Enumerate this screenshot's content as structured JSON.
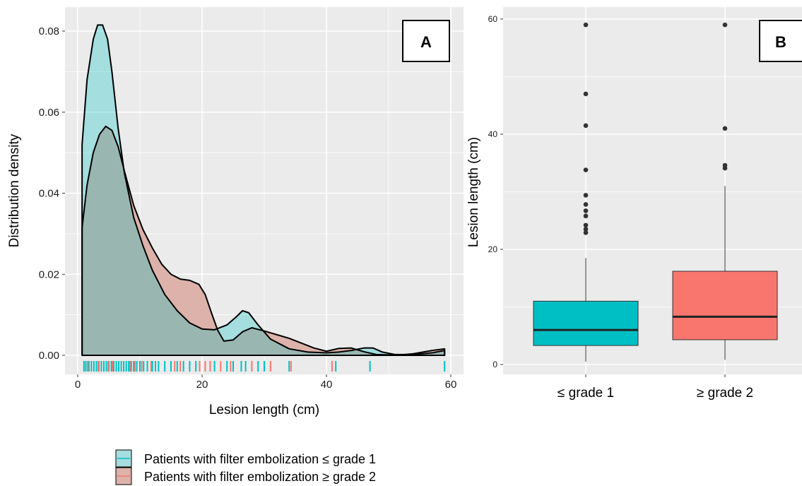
{
  "colors": {
    "panel_bg": "#ebebeb",
    "grid": "#ffffff",
    "group1": "#00bfc4",
    "group2": "#f8766d",
    "group1_fill": "#a6dde0",
    "group2_fill": "#dcb2aa",
    "overlap_fill": "#b7bcb6"
  },
  "chart_data": [
    {
      "type": "area",
      "panel_label": "A",
      "xlabel": "Lesion length (cm)",
      "ylabel": "Distribution density",
      "xlim": [
        0,
        60
      ],
      "ylim": [
        0,
        0.085
      ],
      "x_ticks": [
        0,
        20,
        40,
        60
      ],
      "y_ticks": [
        0.0,
        0.02,
        0.04,
        0.06,
        0.08
      ],
      "y_tick_labels": [
        "0.00",
        "0.02",
        "0.04",
        "0.06",
        "0.08"
      ],
      "grid": true,
      "series": [
        {
          "name": "Patients with filter embolization ≤ grade 1",
          "color": "#00bfc4",
          "x": [
            0.7,
            1.5,
            2.5,
            3.2,
            4.0,
            4.8,
            5.5,
            6.5,
            7.5,
            9,
            10.5,
            12,
            14,
            16,
            18,
            20,
            22,
            24,
            25.5,
            26.5,
            27.5,
            29,
            31,
            34,
            37,
            40,
            42,
            44,
            46,
            47.5,
            49,
            51,
            54,
            57,
            59
          ],
          "values": [
            0.052,
            0.068,
            0.078,
            0.0815,
            0.0815,
            0.078,
            0.07,
            0.056,
            0.045,
            0.034,
            0.027,
            0.021,
            0.015,
            0.011,
            0.008,
            0.0065,
            0.0063,
            0.0075,
            0.0095,
            0.011,
            0.0105,
            0.0075,
            0.004,
            0.0016,
            0.0008,
            0.0006,
            0.0008,
            0.0012,
            0.0018,
            0.0018,
            0.0008,
            0.0002,
            0.0002,
            0.0006,
            0.0012
          ]
        },
        {
          "name": "Patients with filter embolization ≥ grade 2",
          "color": "#f8766d",
          "x": [
            0.7,
            1.5,
            2.5,
            3.5,
            4.5,
            5.5,
            6.5,
            7.5,
            9,
            10.5,
            12,
            13.5,
            15,
            16.5,
            18,
            19.5,
            20.5,
            21.5,
            22.5,
            23.5,
            25,
            26.5,
            28,
            30,
            32,
            34,
            36,
            38,
            40,
            42,
            44,
            46,
            48,
            50,
            52,
            54,
            57,
            59
          ],
          "values": [
            0.0315,
            0.042,
            0.05,
            0.0545,
            0.0565,
            0.0555,
            0.0515,
            0.0455,
            0.037,
            0.031,
            0.0265,
            0.0225,
            0.02,
            0.0188,
            0.0185,
            0.0175,
            0.015,
            0.0105,
            0.0062,
            0.0035,
            0.0038,
            0.0058,
            0.0068,
            0.006,
            0.0051,
            0.0042,
            0.003,
            0.0018,
            0.001,
            0.0017,
            0.0018,
            0.0009,
            0.0002,
            0.0001,
            0.0001,
            0.0004,
            0.0012,
            0.0016
          ]
        }
      ],
      "rug": {
        "group1_x": [
          1,
          1.3,
          1.8,
          2.2,
          2.6,
          3,
          3.4,
          3.8,
          4.2,
          4.6,
          5,
          5.4,
          5.8,
          6.2,
          6.6,
          7,
          7.4,
          7.8,
          8.2,
          8.6,
          9,
          9.5,
          10,
          10.6,
          11.2,
          12,
          12.5,
          13,
          14,
          15,
          16,
          17,
          18,
          19,
          22,
          24,
          25,
          26.3,
          27,
          29,
          30,
          34,
          41.5,
          47,
          59
        ],
        "group2_x": [
          1.6,
          3.3,
          4.9,
          5.6,
          8.4,
          9.2,
          10.3,
          11.8,
          15.6,
          16.5,
          19.6,
          20.5,
          21.3,
          23,
          24.6,
          28,
          31,
          34.3,
          40.9
        ]
      }
    },
    {
      "type": "box",
      "panel_label": "B",
      "ylabel": "Lesion length (cm)",
      "ylim": [
        0,
        60
      ],
      "y_ticks": [
        0,
        20,
        40,
        60
      ],
      "categories": [
        "≤ grade 1",
        "≥ grade 2"
      ],
      "grid": true,
      "boxes": [
        {
          "category": "≤ grade 1",
          "color": "#00bfc4",
          "min": 0.5,
          "q1": 3.3,
          "median": 6.0,
          "q3": 11.0,
          "max": 18.5,
          "outliers": [
            22.9,
            23.5,
            24.2,
            25.8,
            26.7,
            27.8,
            29.4,
            33.8,
            41.5,
            47,
            59
          ]
        },
        {
          "category": "≥ grade 2",
          "color": "#f8766d",
          "min": 0.8,
          "q1": 4.3,
          "median": 8.3,
          "q3": 16.2,
          "max": 31,
          "outliers": [
            34.1,
            34.6,
            41,
            59
          ]
        }
      ]
    }
  ],
  "legend": {
    "items": [
      {
        "label": "Patients with filter embolization ≤ grade 1",
        "color": "#00bfc4",
        "fill": "#a6dde0"
      },
      {
        "label": "Patients with filter embolization ≥ grade 2",
        "color": "#f8766d",
        "fill": "#dcb2aa"
      }
    ]
  }
}
